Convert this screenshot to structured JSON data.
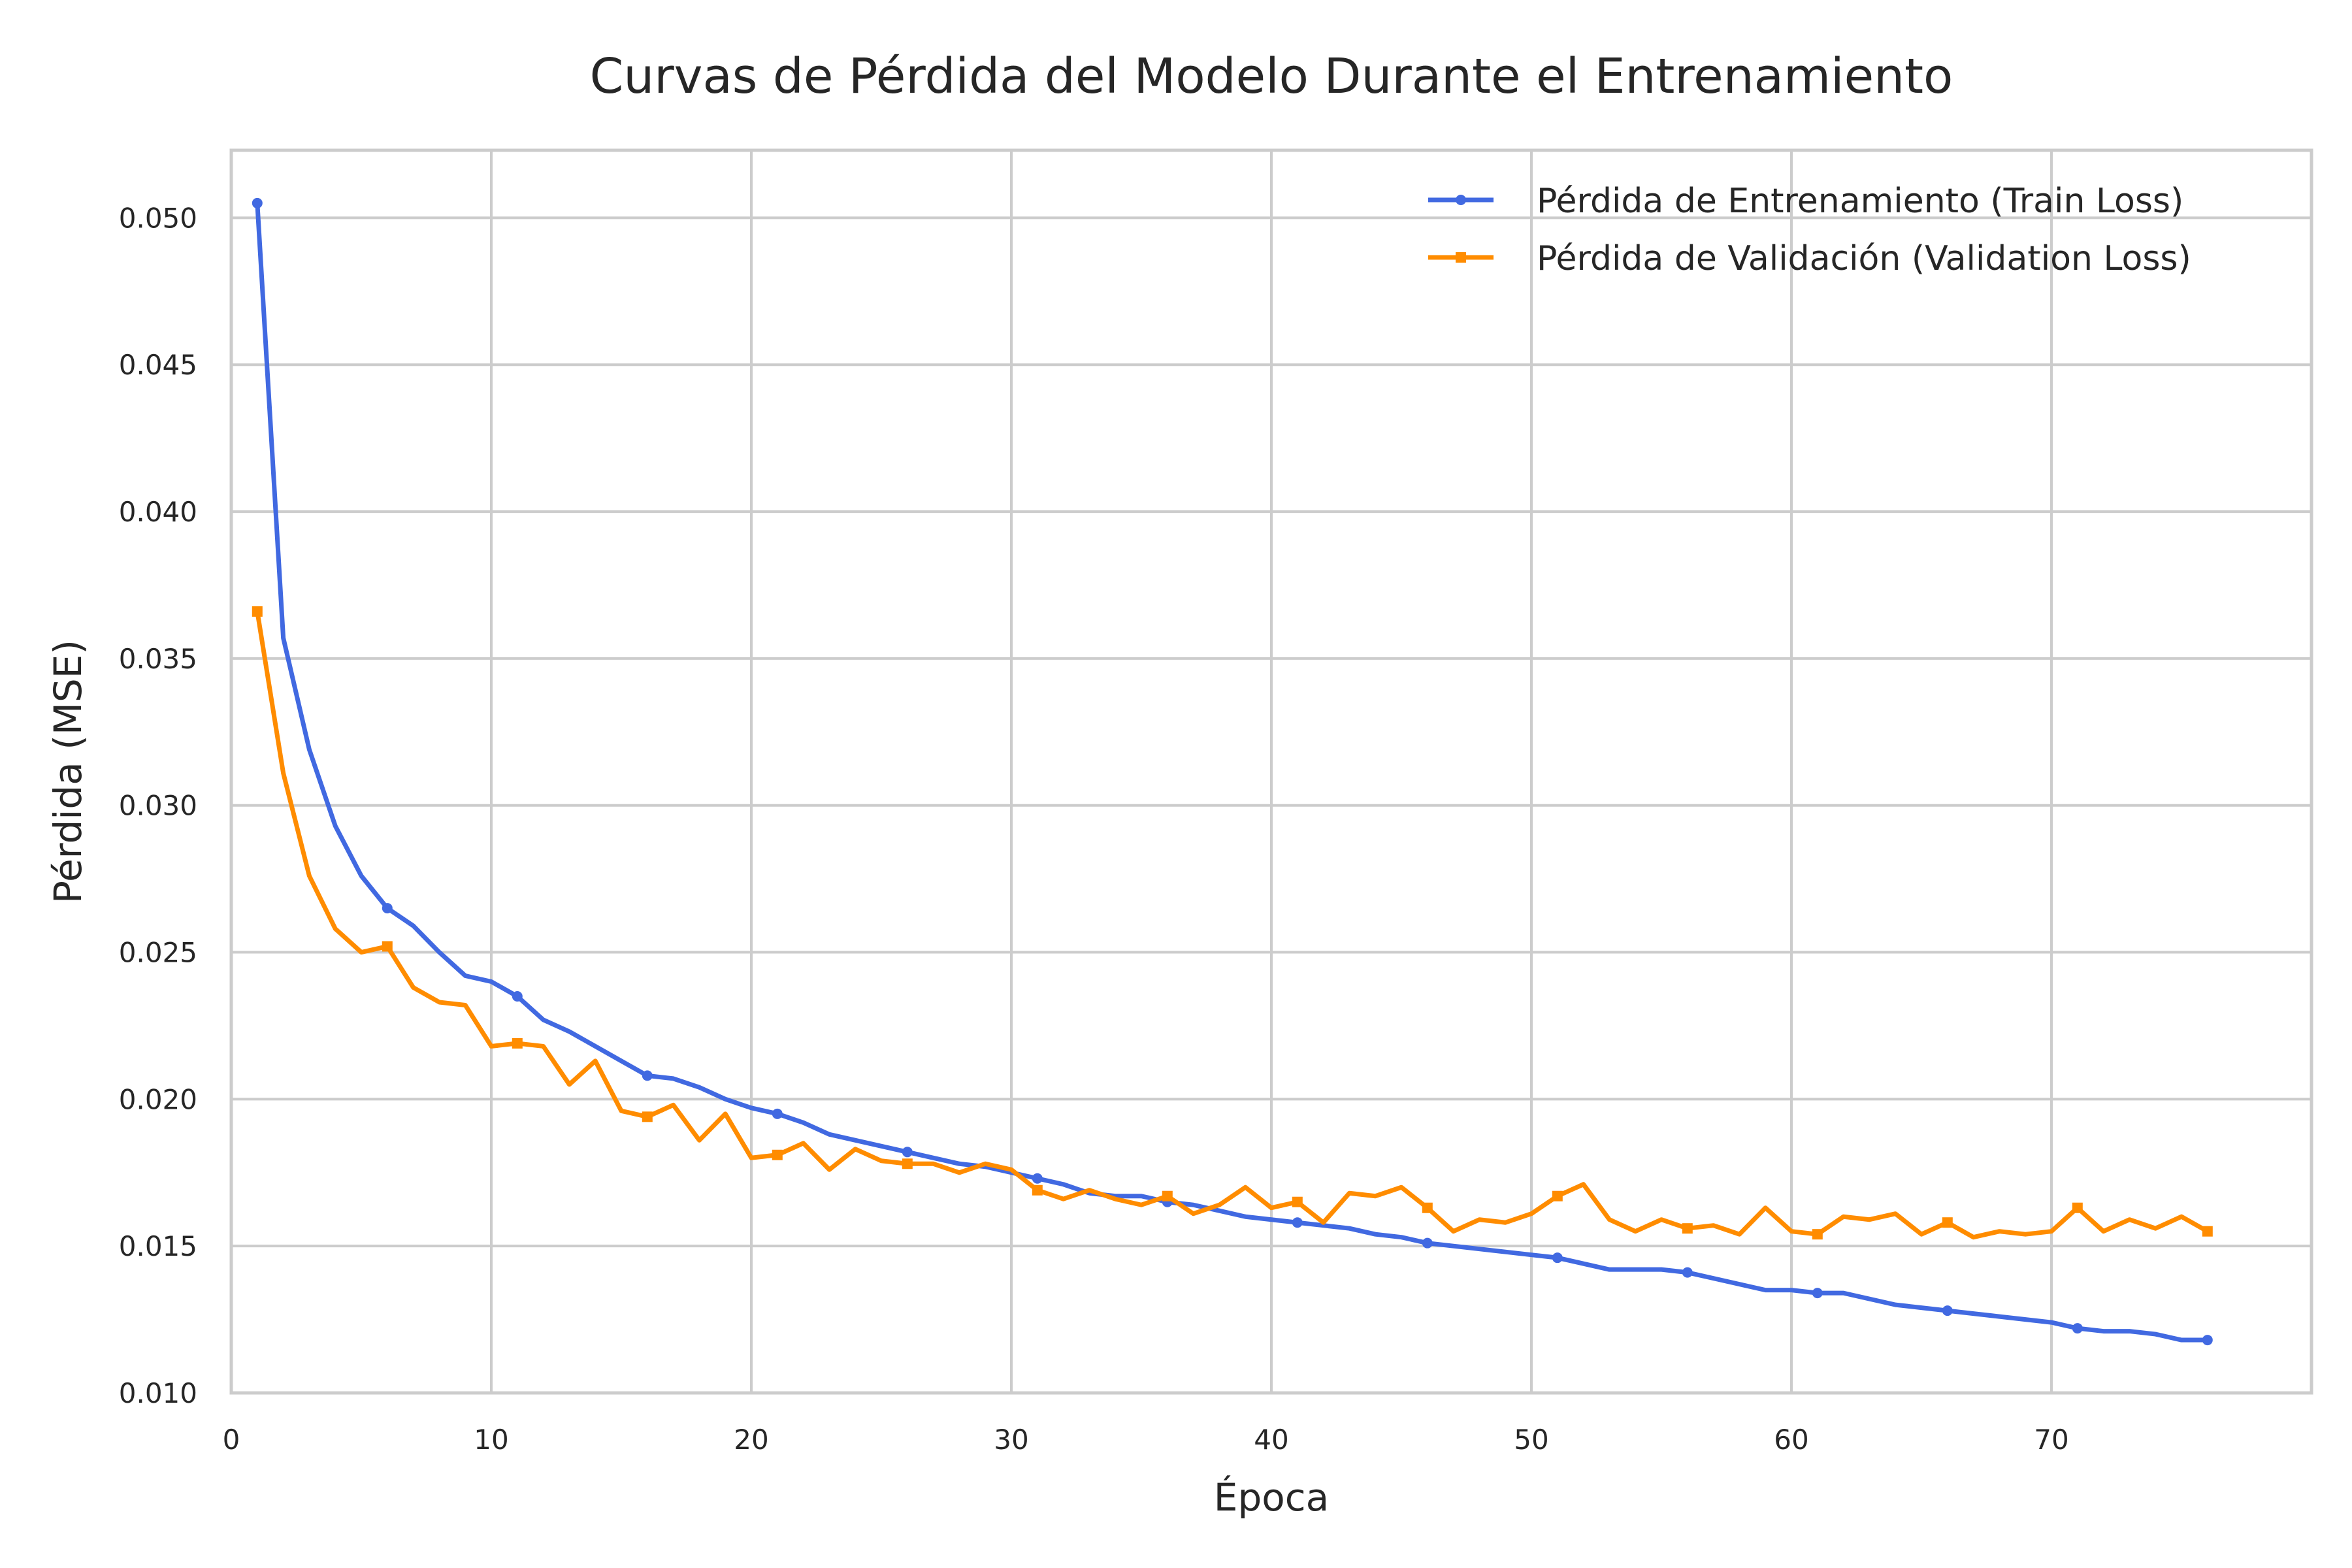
{
  "chart_data": {
    "type": "line",
    "title": "Curvas de Pérdida del Modelo Durante el Entrenamiento",
    "xlabel": "Época",
    "ylabel": "Pérdida (MSE)",
    "xlim": [
      0,
      80
    ],
    "ylim": [
      0.01,
      0.0523
    ],
    "xticks": [
      0,
      10,
      20,
      30,
      40,
      50,
      60,
      70
    ],
    "yticks": [
      0.01,
      0.015,
      0.02,
      0.025,
      0.03,
      0.035,
      0.04,
      0.045,
      0.05
    ],
    "xtick_labels": [
      "0",
      "10",
      "20",
      "30",
      "40",
      "50",
      "60",
      "70"
    ],
    "ytick_labels": [
      "0.010",
      "0.015",
      "0.020",
      "0.025",
      "0.030",
      "0.035",
      "0.040",
      "0.045",
      "0.050"
    ],
    "grid": true,
    "legend_position": "top-right",
    "x": [
      1,
      2,
      3,
      4,
      5,
      6,
      7,
      8,
      9,
      10,
      11,
      12,
      13,
      14,
      15,
      16,
      17,
      18,
      19,
      20,
      21,
      22,
      23,
      24,
      25,
      26,
      27,
      28,
      29,
      30,
      31,
      32,
      33,
      34,
      35,
      36,
      37,
      38,
      39,
      40,
      41,
      42,
      43,
      44,
      45,
      46,
      47,
      48,
      49,
      50,
      51,
      52,
      53,
      54,
      55,
      56,
      57,
      58,
      59,
      60,
      61,
      62,
      63,
      64,
      65,
      66,
      67,
      68,
      69,
      70,
      71,
      72,
      73,
      74,
      75,
      76
    ],
    "series": [
      {
        "name": "Pérdida de Entrenamiento (Train Loss)",
        "color": "#4169e1",
        "marker": "circle",
        "markevery": 5,
        "values": [
          0.0505,
          0.0357,
          0.0319,
          0.0293,
          0.0276,
          0.0265,
          0.0259,
          0.025,
          0.0242,
          0.024,
          0.0235,
          0.0227,
          0.0223,
          0.0218,
          0.0213,
          0.0208,
          0.0207,
          0.0204,
          0.02,
          0.0197,
          0.0195,
          0.0192,
          0.0188,
          0.0186,
          0.0184,
          0.0182,
          0.018,
          0.0178,
          0.0177,
          0.0175,
          0.0173,
          0.0171,
          0.0168,
          0.0167,
          0.0167,
          0.0165,
          0.0164,
          0.0162,
          0.016,
          0.0159,
          0.0158,
          0.0157,
          0.0156,
          0.0154,
          0.0153,
          0.0151,
          0.015,
          0.0149,
          0.0148,
          0.0147,
          0.0146,
          0.0144,
          0.0142,
          0.0142,
          0.0142,
          0.0141,
          0.0139,
          0.0137,
          0.0135,
          0.0135,
          0.0134,
          0.0134,
          0.0132,
          0.013,
          0.0129,
          0.0128,
          0.0127,
          0.0126,
          0.0125,
          0.0124,
          0.0122,
          0.0121,
          0.0121,
          0.012,
          0.0118,
          0.0118
        ]
      },
      {
        "name": "Pérdida de Validación (Validation Loss)",
        "color": "#ff8c00",
        "marker": "square",
        "markevery": 5,
        "values": [
          0.0366,
          0.0311,
          0.0276,
          0.0258,
          0.025,
          0.0252,
          0.0238,
          0.0233,
          0.0232,
          0.0218,
          0.0219,
          0.0218,
          0.0205,
          0.0213,
          0.0196,
          0.0194,
          0.0198,
          0.0186,
          0.0195,
          0.018,
          0.0181,
          0.0185,
          0.0176,
          0.0183,
          0.0179,
          0.0178,
          0.0178,
          0.0175,
          0.0178,
          0.0176,
          0.0169,
          0.0166,
          0.0169,
          0.0166,
          0.0164,
          0.0167,
          0.0161,
          0.0164,
          0.017,
          0.0163,
          0.0165,
          0.0158,
          0.0168,
          0.0167,
          0.017,
          0.0163,
          0.0155,
          0.0159,
          0.0158,
          0.0161,
          0.0167,
          0.0171,
          0.0159,
          0.0155,
          0.0159,
          0.0156,
          0.0157,
          0.0154,
          0.0163,
          0.0155,
          0.0154,
          0.016,
          0.0159,
          0.0161,
          0.0154,
          0.0158,
          0.0153,
          0.0155,
          0.0154,
          0.0155,
          0.0163,
          0.0155,
          0.0159,
          0.0156,
          0.016,
          0.0155
        ]
      }
    ]
  }
}
